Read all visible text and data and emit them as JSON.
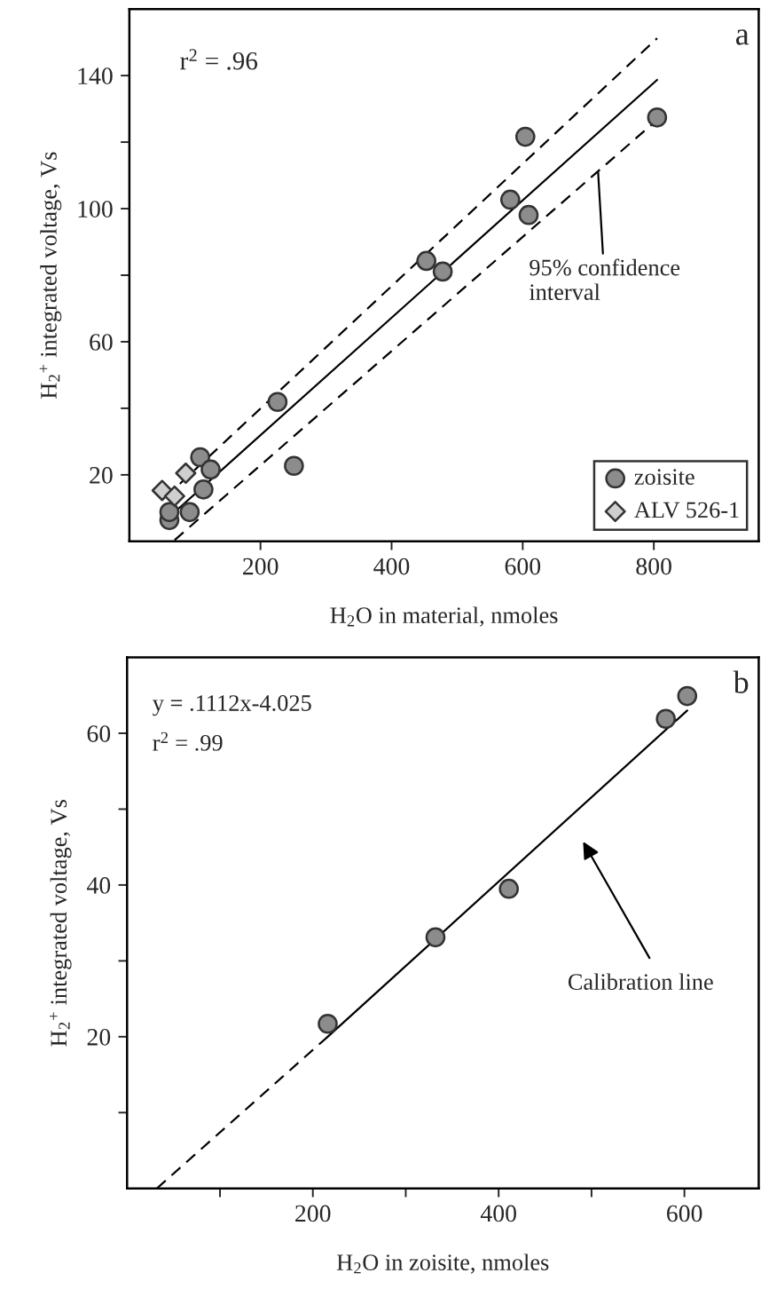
{
  "chart_data": [
    {
      "type": "scatter",
      "xlabel": "H$_{2}$O in material, nmoles",
      "ylabel": "H$_{2}$$^{+}$ integrated voltage, Vs",
      "xlim": [
        0,
        960
      ],
      "ylim": [
        0,
        160
      ],
      "xticks": [
        200,
        400,
        600,
        800
      ],
      "yticks": [
        20,
        {
          "value": 40,
          "label": null
        },
        60,
        {
          "value": 80,
          "label": null
        },
        100,
        {
          "value": 120,
          "label": null
        },
        140
      ],
      "legend": "bottom right",
      "grid": false,
      "series": [
        {
          "type": "line",
          "line_style": "solid",
          "marker": "none",
          "color": "#000000",
          "x": [
            73,
            805
          ],
          "values": [
            9.5,
            138.7
          ]
        },
        {
          "type": "line",
          "line_style": "dashed",
          "marker": "none",
          "color": "#000000",
          "x": [
            77,
            805
          ],
          "values": [
            17.3,
            151.2
          ]
        },
        {
          "type": "line",
          "line_style": "dashed",
          "marker": "none",
          "color": "#000000",
          "x": [
            69,
            805
          ],
          "values": [
            0.4,
            126.7
          ]
        },
        {
          "name": "zoisite",
          "marker": "circle",
          "color": "#8c8c8c",
          "x": [
            604,
            805,
            581,
            609,
            453,
            478,
            226,
            251,
            108,
            124,
            113,
            92,
            61,
            61
          ],
          "values": [
            121.6,
            127.4,
            102.7,
            98.1,
            84.3,
            81.1,
            41.9,
            22.7,
            25.3,
            21.6,
            15.6,
            8.8,
            6.4,
            8.8
          ]
        },
        {
          "name": "ALV 526-1",
          "marker": "diamond",
          "color": "#cfcfcf",
          "x": [
            50,
            69,
            86
          ],
          "values": [
            15.3,
            13.6,
            20.5
          ]
        }
      ],
      "annotations": [
        "r$^{2}$ = .96",
        "a",
        {
          "text": "95% confidence\ninterval",
          "x": 715,
          "y": 111
        }
      ]
    },
    {
      "type": "scatter",
      "xlabel": "H$_{2}$O in zoisite, nmoles",
      "ylabel": "H$_{2}$$^{+}$ integrated voltage, Vs",
      "xlim": [
        0,
        680
      ],
      "ylim": [
        0,
        70
      ],
      "xticks": [
        {
          "value": 100,
          "label": null
        },
        200,
        {
          "value": 300,
          "label": null
        },
        400,
        {
          "value": 500,
          "label": null
        },
        600
      ],
      "yticks": [
        {
          "value": 10,
          "label": null
        },
        20,
        {
          "value": 30,
          "label": null
        },
        40,
        {
          "value": 50,
          "label": null
        },
        60
      ],
      "grid": false,
      "series": [
        {
          "type": "line",
          "line_style": "dashed",
          "marker": "none",
          "color": "#000000",
          "x": [
            32,
            216
          ],
          "values": [
            0,
            20
          ]
        },
        {
          "type": "line",
          "line_style": "solid",
          "marker": "none",
          "color": "#000000",
          "x": [
            216,
            603
          ],
          "values": [
            20,
            63
          ]
        },
        {
          "marker": "circle",
          "color": "#8c8c8c",
          "x": [
            603,
            580,
            411,
            332,
            216
          ],
          "values": [
            64.9,
            61.9,
            39.5,
            33.1,
            21.7
          ]
        }
      ],
      "annotations": [
        "y = .1112x-4.025",
        "r$^{2}$ = .99",
        "b",
        "Calibration line"
      ]
    }
  ]
}
